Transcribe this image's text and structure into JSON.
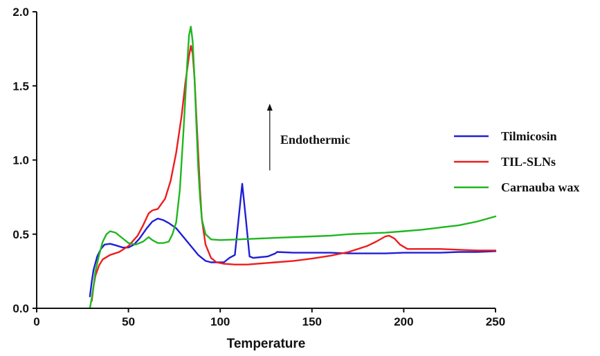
{
  "chart_data": {
    "type": "line",
    "title": "",
    "xlabel": "Temperature",
    "ylabel": "",
    "xlim": [
      0,
      250
    ],
    "ylim": [
      0,
      2.0
    ],
    "x_ticks": [
      0,
      50,
      100,
      150,
      200,
      250
    ],
    "x_tick_labels": [
      "0",
      "50",
      "100",
      "150",
      "200",
      "250"
    ],
    "y_ticks": [
      0,
      0.5,
      1.0,
      1.5,
      2.0
    ],
    "y_tick_labels": [
      "0.0",
      "0.5",
      "1.0",
      "1.5",
      "2.0"
    ],
    "grid": false,
    "legend_position": "right",
    "annotation": {
      "text": "Endothermic",
      "arrow_x": 127,
      "arrow_y_from": 0.93,
      "arrow_y_to": 1.38
    },
    "series": [
      {
        "name": "Tilmicosin",
        "color": "#1f1fd6",
        "points": [
          [
            29,
            0.08
          ],
          [
            30,
            0.18
          ],
          [
            31,
            0.26
          ],
          [
            33,
            0.35
          ],
          [
            35,
            0.4
          ],
          [
            37,
            0.43
          ],
          [
            40,
            0.435
          ],
          [
            43,
            0.425
          ],
          [
            47,
            0.41
          ],
          [
            50,
            0.41
          ],
          [
            53,
            0.43
          ],
          [
            56,
            0.47
          ],
          [
            60,
            0.54
          ],
          [
            63,
            0.585
          ],
          [
            66,
            0.605
          ],
          [
            69,
            0.595
          ],
          [
            72,
            0.575
          ],
          [
            76,
            0.54
          ],
          [
            80,
            0.48
          ],
          [
            84,
            0.42
          ],
          [
            88,
            0.36
          ],
          [
            92,
            0.32
          ],
          [
            95,
            0.31
          ],
          [
            98,
            0.31
          ],
          [
            102,
            0.31
          ],
          [
            105,
            0.34
          ],
          [
            108,
            0.36
          ],
          [
            110,
            0.6
          ],
          [
            112,
            0.84
          ],
          [
            114,
            0.6
          ],
          [
            116,
            0.35
          ],
          [
            118,
            0.34
          ],
          [
            122,
            0.345
          ],
          [
            126,
            0.35
          ],
          [
            130,
            0.37
          ],
          [
            131,
            0.38
          ],
          [
            140,
            0.375
          ],
          [
            150,
            0.375
          ],
          [
            160,
            0.375
          ],
          [
            170,
            0.37
          ],
          [
            180,
            0.37
          ],
          [
            190,
            0.37
          ],
          [
            200,
            0.375
          ],
          [
            210,
            0.375
          ],
          [
            220,
            0.375
          ],
          [
            230,
            0.38
          ],
          [
            240,
            0.38
          ],
          [
            250,
            0.385
          ]
        ]
      },
      {
        "name": "TIL-SLNs",
        "color": "#ee1c1c",
        "points": [
          [
            30,
            0.05
          ],
          [
            31,
            0.15
          ],
          [
            32,
            0.22
          ],
          [
            34,
            0.29
          ],
          [
            36,
            0.33
          ],
          [
            40,
            0.36
          ],
          [
            45,
            0.38
          ],
          [
            50,
            0.42
          ],
          [
            55,
            0.49
          ],
          [
            58,
            0.56
          ],
          [
            61,
            0.64
          ],
          [
            63,
            0.66
          ],
          [
            66,
            0.67
          ],
          [
            70,
            0.74
          ],
          [
            73,
            0.86
          ],
          [
            76,
            1.05
          ],
          [
            79,
            1.3
          ],
          [
            81,
            1.52
          ],
          [
            83,
            1.7
          ],
          [
            84,
            1.77
          ],
          [
            85,
            1.72
          ],
          [
            86,
            1.55
          ],
          [
            87,
            1.3
          ],
          [
            88,
            1.05
          ],
          [
            89,
            0.8
          ],
          [
            90,
            0.6
          ],
          [
            92,
            0.43
          ],
          [
            95,
            0.34
          ],
          [
            98,
            0.31
          ],
          [
            102,
            0.3
          ],
          [
            108,
            0.295
          ],
          [
            115,
            0.295
          ],
          [
            120,
            0.3
          ],
          [
            130,
            0.31
          ],
          [
            140,
            0.32
          ],
          [
            150,
            0.335
          ],
          [
            160,
            0.355
          ],
          [
            170,
            0.38
          ],
          [
            180,
            0.42
          ],
          [
            185,
            0.45
          ],
          [
            190,
            0.485
          ],
          [
            192,
            0.49
          ],
          [
            195,
            0.47
          ],
          [
            198,
            0.43
          ],
          [
            202,
            0.4
          ],
          [
            210,
            0.4
          ],
          [
            220,
            0.4
          ],
          [
            230,
            0.395
          ],
          [
            240,
            0.39
          ],
          [
            250,
            0.39
          ]
        ]
      },
      {
        "name": "Carnauba wax",
        "color": "#1fb61f",
        "points": [
          [
            29,
            0.0
          ],
          [
            30,
            0.07
          ],
          [
            31,
            0.15
          ],
          [
            32,
            0.25
          ],
          [
            34,
            0.36
          ],
          [
            36,
            0.45
          ],
          [
            38,
            0.5
          ],
          [
            40,
            0.52
          ],
          [
            43,
            0.51
          ],
          [
            46,
            0.48
          ],
          [
            50,
            0.44
          ],
          [
            54,
            0.43
          ],
          [
            58,
            0.45
          ],
          [
            61,
            0.48
          ],
          [
            63,
            0.46
          ],
          [
            66,
            0.44
          ],
          [
            69,
            0.44
          ],
          [
            72,
            0.45
          ],
          [
            74,
            0.5
          ],
          [
            76,
            0.58
          ],
          [
            78,
            0.8
          ],
          [
            80,
            1.2
          ],
          [
            82,
            1.65
          ],
          [
            83,
            1.84
          ],
          [
            84,
            1.9
          ],
          [
            85,
            1.8
          ],
          [
            86,
            1.55
          ],
          [
            87,
            1.25
          ],
          [
            88,
            0.95
          ],
          [
            89,
            0.75
          ],
          [
            90,
            0.6
          ],
          [
            92,
            0.5
          ],
          [
            95,
            0.465
          ],
          [
            100,
            0.46
          ],
          [
            110,
            0.465
          ],
          [
            120,
            0.47
          ],
          [
            130,
            0.475
          ],
          [
            140,
            0.48
          ],
          [
            150,
            0.485
          ],
          [
            160,
            0.49
          ],
          [
            170,
            0.5
          ],
          [
            180,
            0.505
          ],
          [
            190,
            0.51
          ],
          [
            200,
            0.52
          ],
          [
            210,
            0.53
          ],
          [
            220,
            0.545
          ],
          [
            230,
            0.56
          ],
          [
            240,
            0.585
          ],
          [
            250,
            0.62
          ]
        ]
      }
    ]
  }
}
